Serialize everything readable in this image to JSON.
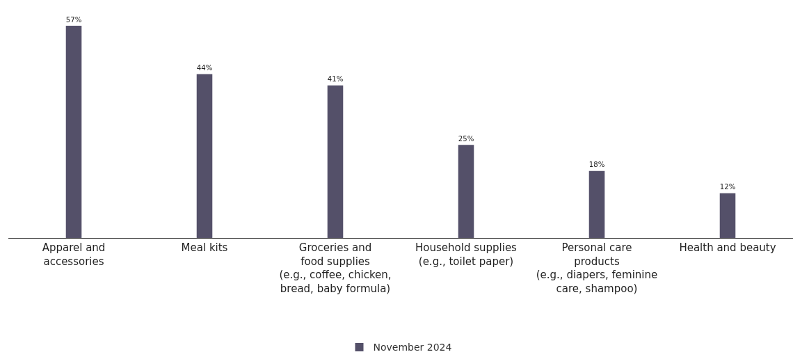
{
  "chart_data": {
    "type": "bar",
    "categories": [
      "Apparel and\naccessories",
      "Meal kits",
      "Groceries and\nfood supplies\n(e.g., coffee, chicken,\nbread, baby formula)",
      "Household supplies\n(e.g., toilet paper)",
      "Personal care\nproducts\n(e.g., diapers, feminine\ncare, shampoo)",
      "Health and beauty"
    ],
    "series": [
      {
        "name": "November 2024",
        "color": "#545069",
        "values": [
          57,
          44,
          41,
          25,
          18,
          12
        ],
        "value_labels": [
          "57%",
          "44%",
          "41%",
          "25%",
          "18%",
          "12%"
        ]
      }
    ],
    "tick_labels": "x",
    "grid": false,
    "legend": "bottom"
  }
}
